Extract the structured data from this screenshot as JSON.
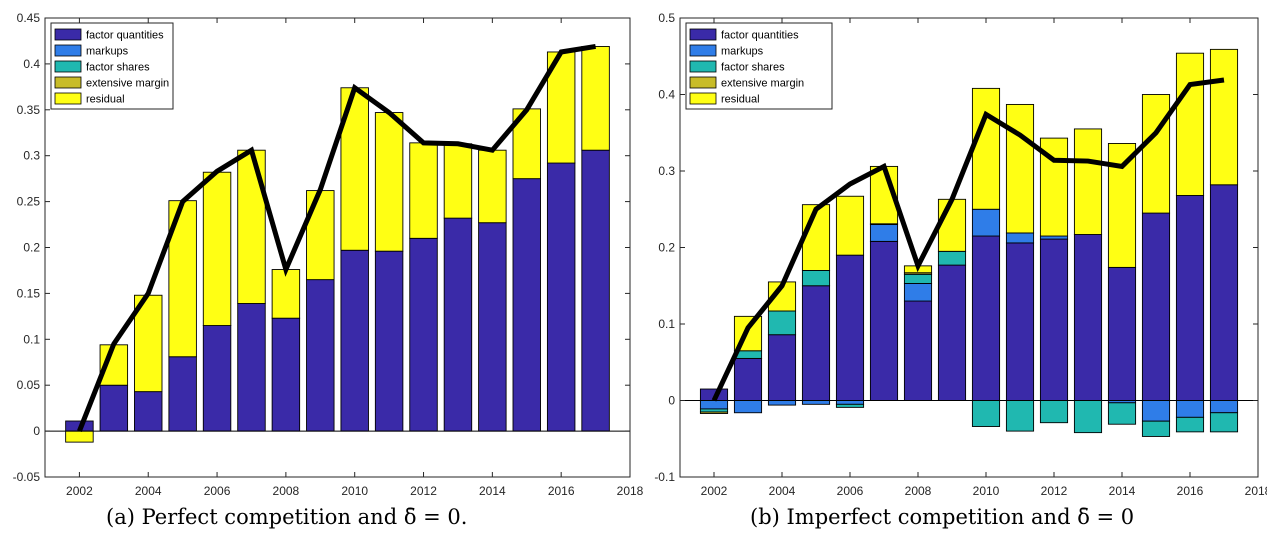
{
  "chart_data": [
    {
      "type": "bar",
      "stacked": true,
      "x": [
        2002,
        2003,
        2004,
        2005,
        2006,
        2007,
        2008,
        2009,
        2010,
        2011,
        2012,
        2013,
        2014,
        2015,
        2016,
        2017
      ],
      "xlim": [
        2001,
        2018
      ],
      "xticks": [
        2002,
        2004,
        2006,
        2008,
        2010,
        2012,
        2014,
        2016,
        2018
      ],
      "ylim": [
        -0.05,
        0.45
      ],
      "yticks": [
        -0.05,
        0,
        0.05,
        0.1,
        0.15,
        0.2,
        0.25,
        0.3,
        0.35,
        0.4,
        0.45
      ],
      "ytick_labels": [
        "-0.05",
        "0",
        "0.05",
        "0.1",
        "0.15",
        "0.2",
        "0.25",
        "0.3",
        "0.35",
        "0.4",
        "0.45"
      ],
      "legend_position": "top-left",
      "series": [
        {
          "name": "factor quantities",
          "color": "#3a2aa8",
          "values": [
            0.011,
            0.05,
            0.043,
            0.081,
            0.115,
            0.139,
            0.123,
            0.165,
            0.197,
            0.196,
            0.21,
            0.232,
            0.227,
            0.275,
            0.292,
            0.306
          ]
        },
        {
          "name": "markups",
          "color": "#2f7de8",
          "values": [
            0,
            0,
            0,
            0,
            0,
            0,
            0,
            0,
            0,
            0,
            0,
            0,
            0,
            0,
            0,
            0
          ]
        },
        {
          "name": "factor shares",
          "color": "#20b8b0",
          "values": [
            0,
            0,
            0,
            0,
            0,
            0,
            0,
            0,
            0,
            0,
            0,
            0,
            0,
            0,
            0,
            0
          ]
        },
        {
          "name": "extensive margin",
          "color": "#c8bc28",
          "values": [
            0,
            0,
            0,
            0,
            0,
            0,
            0,
            0,
            0,
            0,
            0,
            0,
            0,
            0,
            0,
            0
          ]
        },
        {
          "name": "residual",
          "color": "#ffff14",
          "values": [
            -0.012,
            0.044,
            0.105,
            0.17,
            0.167,
            0.167,
            0.053,
            0.097,
            0.177,
            0.151,
            0.104,
            0.081,
            0.079,
            0.076,
            0.121,
            0.113
          ]
        }
      ],
      "line": {
        "color": "#000000",
        "values": [
          0.0,
          0.095,
          0.15,
          0.25,
          0.283,
          0.306,
          0.176,
          0.263,
          0.374,
          0.347,
          0.314,
          0.313,
          0.306,
          0.35,
          0.413,
          0.419
        ]
      },
      "caption": "(a) Perfect competition and δ̄ = 0."
    },
    {
      "type": "bar",
      "stacked": true,
      "x": [
        2002,
        2003,
        2004,
        2005,
        2006,
        2007,
        2008,
        2009,
        2010,
        2011,
        2012,
        2013,
        2014,
        2015,
        2016,
        2017
      ],
      "xlim": [
        2001,
        2018
      ],
      "xticks": [
        2002,
        2004,
        2006,
        2008,
        2010,
        2012,
        2014,
        2016,
        2018
      ],
      "ylim": [
        -0.1,
        0.5
      ],
      "yticks": [
        -0.1,
        0,
        0.1,
        0.2,
        0.3,
        0.4,
        0.5
      ],
      "ytick_labels": [
        "-0.1",
        "0",
        "0.1",
        "0.2",
        "0.3",
        "0.4",
        "0.5"
      ],
      "legend_position": "top-left",
      "series": [
        {
          "name": "factor quantities",
          "color": "#3a2aa8",
          "values": [
            0.015,
            0.055,
            0.086,
            0.15,
            0.19,
            0.208,
            0.13,
            0.177,
            0.215,
            0.206,
            0.211,
            0.217,
            0.174,
            0.245,
            0.268,
            0.282
          ]
        },
        {
          "name": "markups",
          "color": "#2f7de8",
          "values": [
            -0.011,
            -0.016,
            -0.006,
            -0.005,
            -0.005,
            0.022,
            0.023,
            0.0,
            0.035,
            0.013,
            0.004,
            0.0,
            -0.003,
            -0.027,
            -0.022,
            -0.016
          ]
        },
        {
          "name": "factor shares",
          "color": "#20b8b0",
          "values": [
            -0.004,
            0.01,
            0.031,
            0.02,
            -0.004,
            0.0,
            0.012,
            0.018,
            -0.034,
            -0.04,
            -0.029,
            -0.042,
            -0.028,
            -0.02,
            -0.019,
            -0.025
          ]
        },
        {
          "name": "extensive margin",
          "color": "#c8bc28",
          "values": [
            -0.002,
            0.0,
            0.0,
            0.0,
            0.0,
            0.001,
            0.002,
            0.0,
            0.0,
            0.0,
            0.0,
            0.0,
            0.0,
            0.0,
            0.0,
            0.0
          ]
        },
        {
          "name": "residual",
          "color": "#ffff14",
          "values": [
            0.0,
            0.045,
            0.038,
            0.086,
            0.077,
            0.075,
            0.009,
            0.068,
            0.158,
            0.168,
            0.128,
            0.138,
            0.162,
            0.155,
            0.186,
            0.177
          ]
        }
      ],
      "line": {
        "color": "#000000",
        "values": [
          0.0,
          0.095,
          0.15,
          0.25,
          0.283,
          0.306,
          0.176,
          0.263,
          0.374,
          0.347,
          0.314,
          0.313,
          0.306,
          0.35,
          0.413,
          0.419
        ]
      },
      "caption": "(b) Imperfect competition and δ̄ = 0"
    }
  ]
}
